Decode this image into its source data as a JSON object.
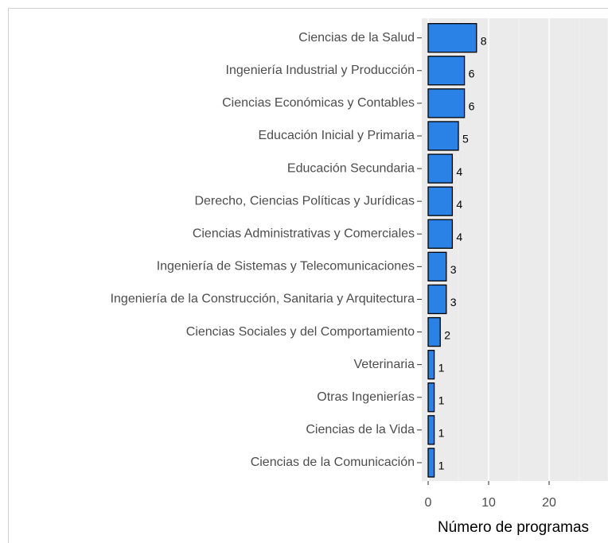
{
  "chart_data": {
    "type": "bar",
    "orientation": "horizontal",
    "categories": [
      "Ciencias de la Salud",
      "Ingeniería Industrial y Producción",
      "Ciencias Económicas y Contables",
      "Educación Inicial y Primaria",
      "Educación Secundaria",
      "Derecho, Ciencias Políticas y Jurídicas",
      "Ciencias Administrativas y Comerciales",
      "Ingeniería de Sistemas y Telecomunicaciones",
      "Ingeniería de la Construcción, Sanitaria y Arquitectura",
      "Ciencias Sociales y del Comportamiento",
      "Veterinaria",
      "Otras Ingenierías",
      "Ciencias de la Vida",
      "Ciencias de la Comunicación"
    ],
    "values": [
      8,
      6,
      6,
      5,
      4,
      4,
      4,
      3,
      3,
      2,
      1,
      1,
      1,
      1
    ],
    "color": "#2a82e6",
    "xlabel": "Número de programas",
    "xlim": [
      -1.05,
      29.7
    ],
    "xticks": [
      0,
      10,
      20
    ],
    "xminorticks": [
      5,
      15,
      25
    ],
    "grid": true
  }
}
